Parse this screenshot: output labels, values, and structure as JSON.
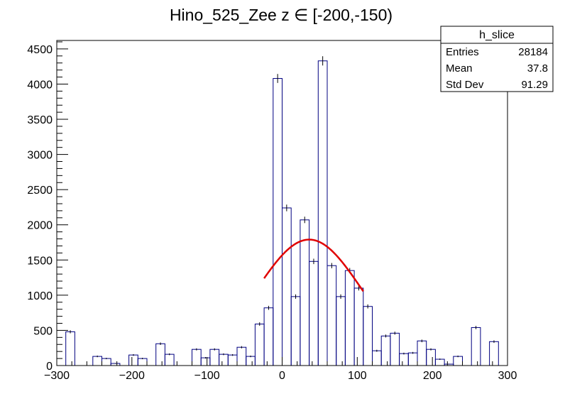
{
  "chart_data": {
    "type": "histogram",
    "title": "Hino_525_Zee z  ∈ [-200,-150)",
    "xlabel": "",
    "ylabel": "",
    "xlim": [
      -300,
      300
    ],
    "ylim": [
      0,
      4620
    ],
    "bin_width": 12,
    "x_ticks": [
      -300,
      -200,
      -100,
      0,
      100,
      200,
      300
    ],
    "y_ticks": [
      0,
      500,
      1000,
      1500,
      2000,
      2500,
      3000,
      3500,
      4000,
      4500
    ],
    "colors": {
      "histogram": "#000080",
      "fit": "#e00000",
      "frame": "#000000"
    },
    "bins": [
      {
        "x": -294,
        "y": 0
      },
      {
        "x": -282,
        "y": 480
      },
      {
        "x": -270,
        "y": 0
      },
      {
        "x": -258,
        "y": 0
      },
      {
        "x": -246,
        "y": 130
      },
      {
        "x": -234,
        "y": 100
      },
      {
        "x": -222,
        "y": 30
      },
      {
        "x": -210,
        "y": 0
      },
      {
        "x": -198,
        "y": 150
      },
      {
        "x": -186,
        "y": 100
      },
      {
        "x": -174,
        "y": 0
      },
      {
        "x": -162,
        "y": 310
      },
      {
        "x": -150,
        "y": 160
      },
      {
        "x": -138,
        "y": 0
      },
      {
        "x": -126,
        "y": 0
      },
      {
        "x": -114,
        "y": 230
      },
      {
        "x": -102,
        "y": 110
      },
      {
        "x": -90,
        "y": 230
      },
      {
        "x": -78,
        "y": 160
      },
      {
        "x": -66,
        "y": 150
      },
      {
        "x": -54,
        "y": 260
      },
      {
        "x": -42,
        "y": 130
      },
      {
        "x": -30,
        "y": 590
      },
      {
        "x": -18,
        "y": 820
      },
      {
        "x": -6,
        "y": 4080
      },
      {
        "x": 6,
        "y": 2240
      },
      {
        "x": 18,
        "y": 980
      },
      {
        "x": 30,
        "y": 2070
      },
      {
        "x": 42,
        "y": 1480
      },
      {
        "x": 54,
        "y": 4330
      },
      {
        "x": 66,
        "y": 1420
      },
      {
        "x": 78,
        "y": 980
      },
      {
        "x": 90,
        "y": 1350
      },
      {
        "x": 102,
        "y": 1100
      },
      {
        "x": 114,
        "y": 840
      },
      {
        "x": 126,
        "y": 210
      },
      {
        "x": 138,
        "y": 420
      },
      {
        "x": 150,
        "y": 460
      },
      {
        "x": 162,
        "y": 170
      },
      {
        "x": 174,
        "y": 180
      },
      {
        "x": 186,
        "y": 350
      },
      {
        "x": 198,
        "y": 230
      },
      {
        "x": 210,
        "y": 90
      },
      {
        "x": 222,
        "y": 20
      },
      {
        "x": 234,
        "y": 130
      },
      {
        "x": 246,
        "y": 0
      },
      {
        "x": 258,
        "y": 540
      },
      {
        "x": 270,
        "y": 0
      },
      {
        "x": 282,
        "y": 340
      },
      {
        "x": 294,
        "y": 0
      }
    ],
    "fit": {
      "type": "gaussian",
      "range": [
        -24,
        108
      ],
      "amplitude": 1790,
      "mean": 36,
      "sigma": 70
    },
    "stats_box": {
      "name": "h_slice",
      "rows": [
        {
          "label": "Entries",
          "value": "28184"
        },
        {
          "label": "Mean",
          "value": "37.8"
        },
        {
          "label": "Std Dev",
          "value": "91.29"
        }
      ]
    }
  }
}
